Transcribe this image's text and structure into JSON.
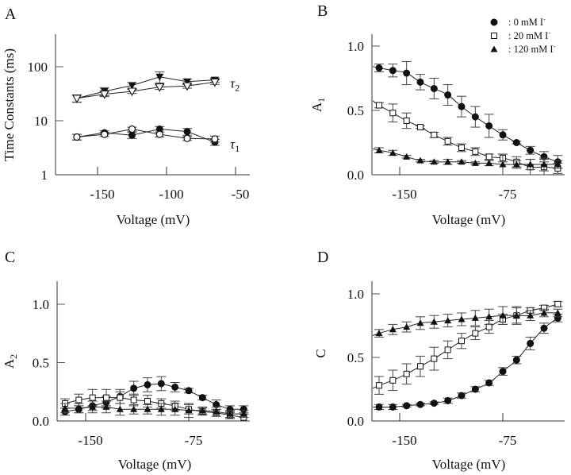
{
  "chart_data": [
    {
      "panel": "A",
      "type": "line",
      "title": "",
      "xlabel": "Voltage (mV)",
      "ylabel": "Time Constants (ms)",
      "yscale": "log",
      "xlim": [
        -175,
        -40
      ],
      "ylim": [
        1,
        300
      ],
      "xticks": [
        -150,
        -100,
        -50
      ],
      "xtick_labels": [
        "-150",
        "-100",
        "-50"
      ],
      "yticks": [
        1,
        10,
        100
      ],
      "ytick_labels": [
        "1",
        "10",
        "100"
      ],
      "annotations": [
        {
          "text": "τ2",
          "near": "upper series"
        },
        {
          "text": "τ1",
          "near": "lower series"
        }
      ],
      "x": [
        -165,
        -145,
        -125,
        -105,
        -85,
        -65
      ],
      "series": [
        {
          "name": "τ2 filled",
          "marker": "triangle-down-filled",
          "values": [
            26,
            35,
            45,
            65,
            53,
            57
          ],
          "err": [
            4,
            6,
            6,
            15,
            6,
            5
          ]
        },
        {
          "name": "τ2 open",
          "marker": "triangle-down-open",
          "values": [
            26,
            31,
            35,
            42,
            44,
            52
          ],
          "err": [
            4,
            3,
            3,
            4,
            4,
            5
          ]
        },
        {
          "name": "τ1 filled",
          "marker": "circle-filled",
          "values": [
            5.0,
            6.0,
            5.4,
            7.0,
            6.3,
            4.0
          ],
          "err": [
            0.6,
            0.5,
            0.7,
            0.8,
            0.9,
            0.5
          ]
        },
        {
          "name": "τ1 open",
          "marker": "circle-open",
          "values": [
            5.0,
            5.6,
            7.0,
            5.6,
            4.7,
            4.6
          ],
          "err": [
            0.6,
            0.5,
            0.6,
            0.6,
            0.4,
            0.6
          ]
        }
      ]
    },
    {
      "panel": "B",
      "type": "scatter",
      "title": "",
      "xlabel": "Voltage (mV)",
      "ylabel": "A1",
      "xlim": [
        -170,
        -30
      ],
      "ylim": [
        0,
        1.1
      ],
      "xticks": [
        -150,
        -75
      ],
      "xtick_labels": [
        "-150",
        "-75"
      ],
      "yticks": [
        0,
        0.5,
        1.0
      ],
      "ytick_labels": [
        "0.0",
        "0.5",
        "1.0"
      ],
      "legend": {
        "placement": "top-right",
        "entries": [
          {
            "marker": "circle-filled",
            "label": ": 0 mM  I"
          },
          {
            "marker": "square-open",
            "label": ": 20 mM  I"
          },
          {
            "marker": "triangle-filled",
            "label": ": 120 mM  I"
          }
        ],
        "superscript": "-"
      },
      "x": [
        -165,
        -155,
        -145,
        -135,
        -125,
        -115,
        -105,
        -95,
        -85,
        -75,
        -65,
        -55,
        -45,
        -35
      ],
      "series": [
        {
          "name": "0 mM I-",
          "marker": "circle-filled",
          "fit": true,
          "values": [
            0.83,
            0.81,
            0.79,
            0.72,
            0.67,
            0.62,
            0.53,
            0.45,
            0.38,
            0.31,
            0.25,
            0.19,
            0.14,
            0.1
          ],
          "err": [
            0.03,
            0.05,
            0.09,
            0.06,
            0.08,
            0.08,
            0.08,
            0.08,
            0.09,
            0.04,
            0.01,
            0.03,
            0.04,
            0.05
          ]
        },
        {
          "name": "20 mM I-",
          "marker": "square-open",
          "fit": true,
          "values": [
            0.54,
            0.48,
            0.42,
            0.37,
            0.31,
            0.26,
            0.21,
            0.18,
            0.14,
            0.13,
            0.1,
            0.06,
            0.06,
            0.05
          ],
          "err": [
            0.02,
            0.07,
            0.06,
            0.01,
            0.02,
            0.03,
            0.03,
            0.03,
            0.02,
            0.03,
            0.04,
            0.06,
            0.06,
            0.04
          ]
        },
        {
          "name": "120 mM I-",
          "marker": "triangle-filled",
          "fit": true,
          "values": [
            0.19,
            0.17,
            0.14,
            0.11,
            0.1,
            0.1,
            0.1,
            0.09,
            0.09,
            0.08,
            0.08,
            0.08,
            0.08,
            0.08
          ],
          "err": [
            0.02,
            0.02,
            0.01,
            0.01,
            0.01,
            0.02,
            0.01,
            0.01,
            0.02,
            0.08,
            0.03,
            0.04,
            0.05,
            0.03
          ]
        }
      ]
    },
    {
      "panel": "C",
      "type": "line",
      "title": "",
      "xlabel": "Voltage (mV)",
      "ylabel": "A2",
      "xlim": [
        -170,
        -30
      ],
      "ylim": [
        0,
        1.2
      ],
      "xticks": [
        -150,
        -75
      ],
      "xtick_labels": [
        "-150",
        "-75"
      ],
      "yticks": [
        0,
        0.5,
        1.0
      ],
      "ytick_labels": [
        "0.0",
        "0.5",
        "1.0"
      ],
      "x": [
        -165,
        -155,
        -145,
        -135,
        -125,
        -115,
        -105,
        -95,
        -85,
        -75,
        -65,
        -55,
        -45,
        -35
      ],
      "series": [
        {
          "name": "0 mM I-",
          "marker": "circle-filled",
          "values": [
            0.08,
            0.1,
            0.13,
            0.16,
            0.21,
            0.28,
            0.31,
            0.32,
            0.29,
            0.26,
            0.2,
            0.14,
            0.1,
            0.1
          ],
          "err": [
            0.03,
            0.03,
            0.04,
            0.05,
            0.06,
            0.06,
            0.06,
            0.06,
            0.04,
            0.02,
            0.02,
            0.04,
            0.03,
            0.03
          ]
        },
        {
          "name": "20 mM I-",
          "marker": "square-open",
          "values": [
            0.15,
            0.18,
            0.2,
            0.2,
            0.2,
            0.18,
            0.17,
            0.15,
            0.13,
            0.1,
            0.08,
            0.07,
            0.05,
            0.03
          ],
          "err": [
            0.04,
            0.05,
            0.07,
            0.07,
            0.05,
            0.05,
            0.05,
            0.04,
            0.04,
            0.04,
            0.03,
            0.03,
            0.03,
            0.03
          ]
        },
        {
          "name": "120 mM I-",
          "marker": "triangle-filled",
          "values": [
            0.11,
            0.11,
            0.12,
            0.12,
            0.1,
            0.1,
            0.1,
            0.1,
            0.1,
            0.09,
            0.09,
            0.08,
            0.06,
            0.06
          ],
          "err": [
            0.04,
            0.04,
            0.05,
            0.05,
            0.05,
            0.04,
            0.04,
            0.05,
            0.05,
            0.06,
            0.03,
            0.04,
            0.03,
            0.03
          ]
        }
      ]
    },
    {
      "panel": "D",
      "type": "scatter",
      "title": "",
      "xlabel": "Voltage (mV)",
      "ylabel": "C",
      "xlim": [
        -170,
        -30
      ],
      "ylim": [
        0,
        1.1
      ],
      "xticks": [
        -150,
        -75
      ],
      "xtick_labels": [
        "-150",
        "-75"
      ],
      "yticks": [
        0,
        0.5,
        1.0
      ],
      "ytick_labels": [
        "0.0",
        "0.5",
        "1.0"
      ],
      "x": [
        -165,
        -155,
        -145,
        -135,
        -125,
        -115,
        -105,
        -95,
        -85,
        -75,
        -65,
        -55,
        -45,
        -35
      ],
      "series": [
        {
          "name": "0 mM I-",
          "marker": "circle-filled",
          "fit": true,
          "values": [
            0.11,
            0.11,
            0.12,
            0.13,
            0.14,
            0.16,
            0.2,
            0.25,
            0.3,
            0.39,
            0.48,
            0.61,
            0.73,
            0.81
          ],
          "err": [
            0.02,
            0.02,
            0.01,
            0.01,
            0.01,
            0.02,
            0.02,
            0.02,
            0.02,
            0.03,
            0.03,
            0.05,
            0.04,
            0.03
          ]
        },
        {
          "name": "20 mM I-",
          "marker": "square-open",
          "fit": true,
          "values": [
            0.28,
            0.32,
            0.37,
            0.43,
            0.49,
            0.56,
            0.63,
            0.69,
            0.74,
            0.8,
            0.83,
            0.87,
            0.89,
            0.92
          ],
          "err": [
            0.07,
            0.08,
            0.08,
            0.08,
            0.09,
            0.07,
            0.06,
            0.05,
            0.05,
            0.04,
            0.07,
            0.02,
            0.02,
            0.02
          ]
        },
        {
          "name": "120 mM I-",
          "marker": "triangle-filled",
          "fit": true,
          "values": [
            0.69,
            0.72,
            0.74,
            0.77,
            0.78,
            0.79,
            0.8,
            0.81,
            0.82,
            0.83,
            0.83,
            0.83,
            0.85,
            0.85
          ],
          "err": [
            0.03,
            0.04,
            0.04,
            0.05,
            0.05,
            0.05,
            0.05,
            0.06,
            0.06,
            0.07,
            0.06,
            0.04,
            0.03,
            0.03
          ]
        }
      ]
    }
  ]
}
